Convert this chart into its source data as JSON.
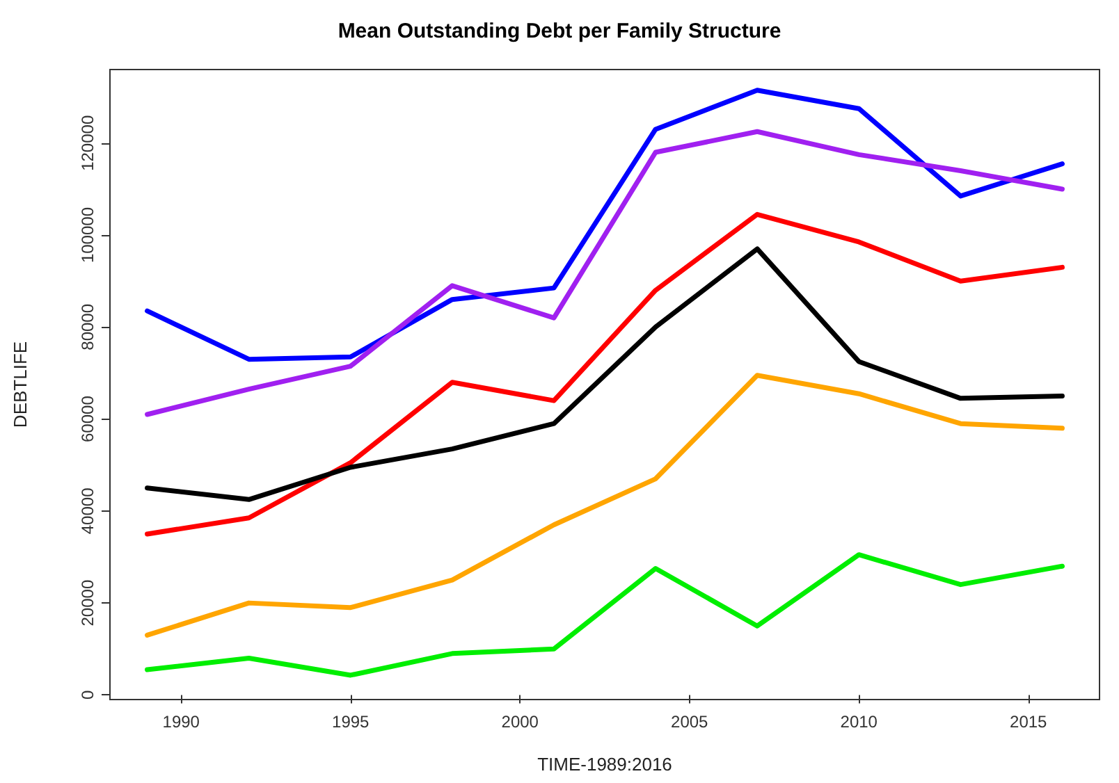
{
  "chart_data": {
    "type": "line",
    "title": "Mean Outstanding Debt per Family Structure",
    "xlabel": "TIME-1989:2016",
    "ylabel": "DEBTLIFE",
    "x": [
      1989,
      1992,
      1995,
      1998,
      2001,
      2004,
      2007,
      2010,
      2013,
      2016
    ],
    "series": [
      {
        "color": "#0000ff",
        "values": [
          83500,
          73000,
          73500,
          86000,
          88500,
          123000,
          131500,
          127500,
          108500,
          115500
        ]
      },
      {
        "color": "#a020f0",
        "values": [
          61000,
          66500,
          71500,
          89000,
          82000,
          118000,
          122500,
          117500,
          114000,
          110000
        ]
      },
      {
        "color": "#ff0000",
        "values": [
          35000,
          38500,
          50500,
          68000,
          64000,
          88000,
          104500,
          98500,
          90000,
          93000
        ]
      },
      {
        "color": "#000000",
        "values": [
          45000,
          42500,
          49500,
          53500,
          59000,
          80000,
          97000,
          72500,
          64500,
          65000
        ]
      },
      {
        "color": "#ffa500",
        "values": [
          13000,
          20000,
          19000,
          25000,
          37000,
          47000,
          69500,
          65500,
          59000,
          58000
        ]
      },
      {
        "color": "#00ee00",
        "values": [
          5500,
          8000,
          4300,
          9000,
          10000,
          27500,
          15000,
          30500,
          24000,
          28000
        ]
      }
    ],
    "xlim": [
      1987.9,
      2017.1
    ],
    "xticks": [
      1990,
      1995,
      2000,
      2005,
      2010,
      2015
    ],
    "ylim": [
      -1000,
      136000
    ],
    "yticks": [
      0,
      20000,
      40000,
      60000,
      80000,
      100000,
      120000
    ],
    "grid": false,
    "marker": "none",
    "line_style": "solid"
  }
}
